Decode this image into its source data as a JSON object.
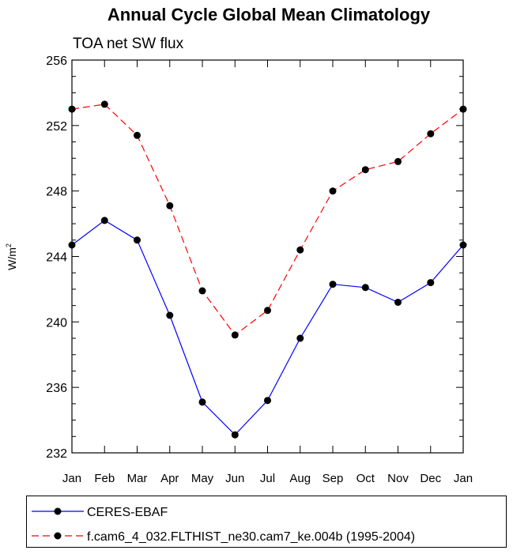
{
  "chart_data": {
    "type": "line",
    "title": "Annual Cycle Global Mean Climatology",
    "subtitle": "TOA net SW flux",
    "xlabel": "",
    "ylabel": "W/m",
    "ylabel_superscript": "2",
    "categories": [
      "Jan",
      "Feb",
      "Mar",
      "Apr",
      "May",
      "Jun",
      "Jul",
      "Aug",
      "Sep",
      "Oct",
      "Nov",
      "Dec",
      "Jan"
    ],
    "ylim": [
      232,
      256
    ],
    "yticks": [
      "232",
      "236",
      "240",
      "244",
      "248",
      "252",
      "256"
    ],
    "grid": false,
    "legend_position": "bottom",
    "series": [
      {
        "name": "CERES-EBAF",
        "color": "#0000ff",
        "dash": "solid",
        "values": [
          244.7,
          246.2,
          245.0,
          240.4,
          235.1,
          233.1,
          235.2,
          239.0,
          242.3,
          242.1,
          241.2,
          242.4,
          244.7
        ]
      },
      {
        "name": "f.cam6_4_032.FLTHIST_ne30.cam7_ke.004b (1995-2004)",
        "color": "#ff0000",
        "dash": "dashed",
        "values": [
          253.0,
          253.3,
          251.4,
          247.1,
          241.9,
          239.2,
          240.7,
          244.4,
          248.0,
          249.3,
          249.8,
          251.5,
          253.0
        ]
      }
    ]
  }
}
